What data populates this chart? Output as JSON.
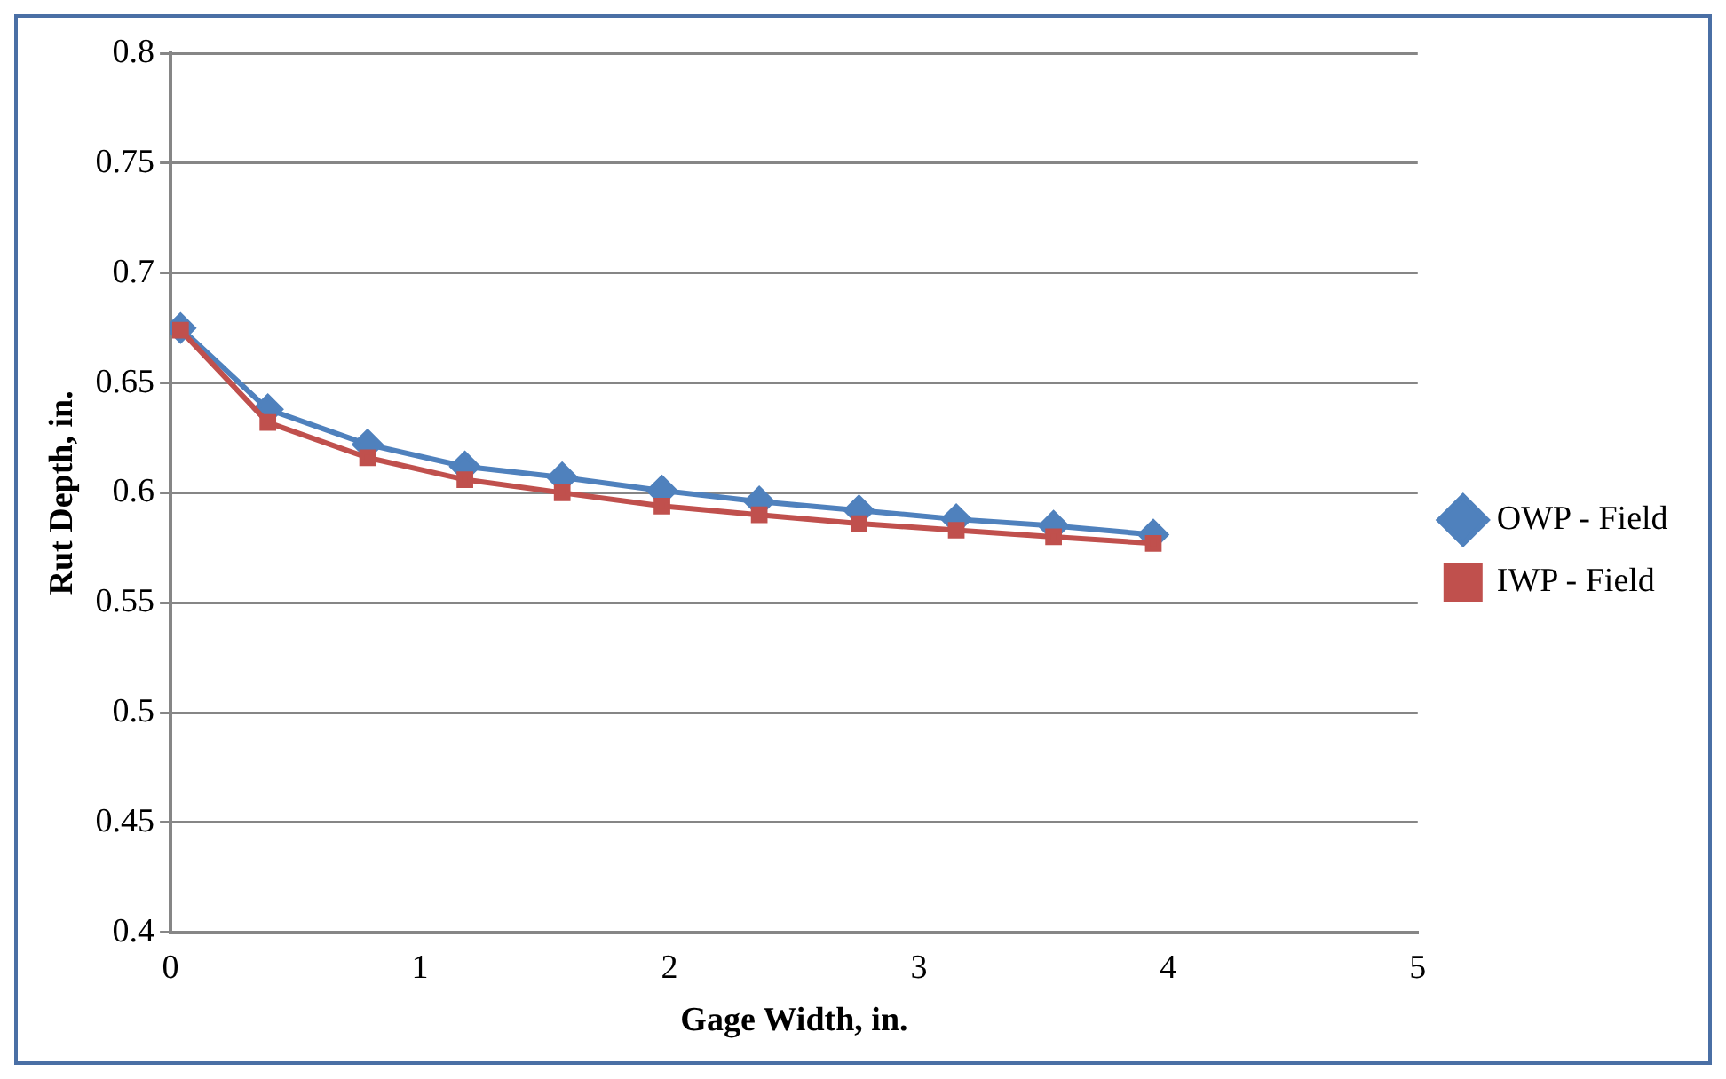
{
  "chart_data": {
    "type": "line",
    "xlabel": "Gage Width, in.",
    "ylabel": "Rut Depth, in.",
    "x": [
      0.04,
      0.39,
      0.79,
      1.18,
      1.57,
      1.97,
      2.36,
      2.76,
      3.15,
      3.54,
      3.94
    ],
    "series": [
      {
        "name": "OWP - Field",
        "color": "#4f81bd",
        "marker": "diamond",
        "values": [
          0.675,
          0.638,
          0.622,
          0.612,
          0.607,
          0.601,
          0.596,
          0.592,
          0.588,
          0.585,
          0.581
        ]
      },
      {
        "name": "IWP - Field",
        "color": "#c0504d",
        "marker": "square",
        "values": [
          0.674,
          0.632,
          0.616,
          0.606,
          0.6,
          0.594,
          0.59,
          0.586,
          0.583,
          0.58,
          0.577
        ]
      }
    ],
    "xlim": [
      0,
      5
    ],
    "xticks": [
      0,
      1,
      2,
      3,
      4,
      5
    ],
    "ylim": [
      0.4,
      0.8
    ],
    "yticks": [
      0.4,
      0.45,
      0.5,
      0.55,
      0.6,
      0.65,
      0.7,
      0.75,
      0.8
    ],
    "grid": "y",
    "legend": "right",
    "line_style": "solid"
  }
}
